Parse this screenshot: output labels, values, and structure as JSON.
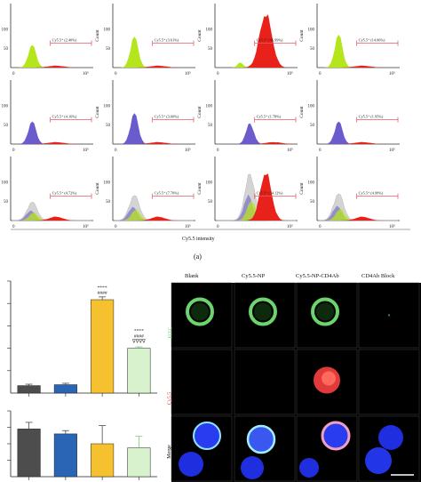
{
  "panel_label": "(a)",
  "flow": {
    "xlabel": "Cy5.5 intensity",
    "ylabel": "Count",
    "y_ticks": [
      "0",
      "50",
      "100",
      "150"
    ],
    "x_ticks": [
      "0",
      "10⁵"
    ],
    "gate_label": "Cy5.5⁺",
    "colors": {
      "green": "#b5e61d",
      "red": "#e8221b",
      "blue": "#6a5ccc",
      "gray": "#c9c9c9",
      "gate": "#e85a6a"
    },
    "rows": [
      {
        "fill": "green",
        "cols": [
          {
            "pct": "(2.40%)",
            "hist": "green",
            "peak": 0.22
          },
          {
            "pct": "(3.61%)",
            "hist": "green",
            "peak": 0.3
          },
          {
            "pct": "(96.99%)",
            "hist": "red",
            "peak": 0.62
          },
          {
            "pct": "(14.06%)",
            "hist": "green",
            "peak": 0.32
          }
        ]
      },
      {
        "fill": "blue",
        "cols": [
          {
            "pct": "(4.16%)",
            "hist": "blue",
            "peak": 0.22
          },
          {
            "pct": "(3.60%)",
            "hist": "blue",
            "peak": 0.3
          },
          {
            "pct": "(1.78%)",
            "hist": "blue",
            "peak": 0.2
          },
          {
            "pct": "(1.95%)",
            "hist": "blue",
            "peak": 0.22
          }
        ]
      },
      {
        "fill": "overlay",
        "cols": [
          {
            "pct": "(4.72%)",
            "hist": "overlay",
            "peak": 0.22
          },
          {
            "pct": "(7.70%)",
            "hist": "overlay",
            "peak": 0.3
          },
          {
            "pct": "(54.12%)",
            "hist": "overlay_red",
            "peak": 0.55
          },
          {
            "pct": "(4.99%)",
            "hist": "overlay",
            "peak": 0.32
          }
        ]
      }
    ]
  },
  "chart_data": [
    {
      "type": "bar",
      "categories": [
        "",
        "",
        "",
        ""
      ],
      "values": [
        8,
        9,
        100,
        48
      ],
      "colors": [
        "#4d4d4d",
        "#2a64b4",
        "#f5c12e",
        "#d7f2cc"
      ],
      "annotations": [
        {
          "bar": 2,
          "text": [
            "****",
            "####"
          ]
        },
        {
          "bar": 3,
          "text": [
            "****",
            "####",
            "∇∇∇∇"
          ]
        }
      ],
      "ylim": [
        0,
        120
      ]
    },
    {
      "type": "bar",
      "categories": [
        "",
        "",
        "",
        ""
      ],
      "values": [
        58,
        52,
        40,
        35
      ],
      "errors": [
        8,
        4,
        22,
        14
      ],
      "colors": [
        "#4d4d4d",
        "#2a64b4",
        "#f5c12e",
        "#d7f2cc"
      ],
      "ylim": [
        0,
        80
      ]
    }
  ],
  "microscopy": {
    "columns": [
      "Blank",
      "Cy5.5-NP",
      "Cy5.5-NP-CD4Ab",
      "CD4Ab Block"
    ],
    "rows": [
      {
        "label": "FITC",
        "color": "#6dd36d"
      },
      {
        "label": "Cy5.5",
        "color": "#e23a3a"
      },
      {
        "label": "Merge",
        "color": "#111111"
      }
    ]
  }
}
